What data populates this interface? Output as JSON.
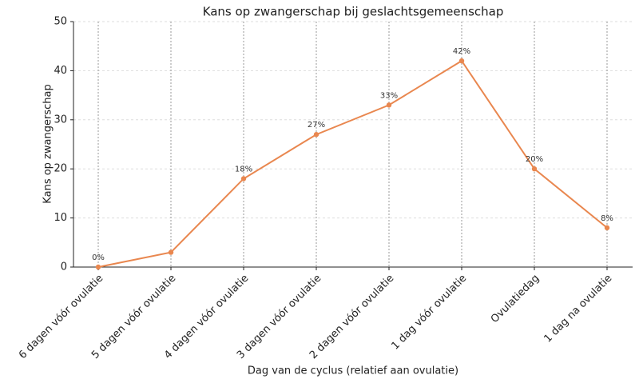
{
  "chart_data": {
    "type": "line",
    "title": "Kans op zwangerschap bij geslachtsgemeenschap",
    "x_label": "Dag van de cyclus (relatief aan ovulatie)",
    "y_label": "Kans op zwangerschap",
    "categories": [
      "6 dagen vóór ovulatie",
      "5 dagen vóór ovulatie",
      "4 dagen vóór ovulatie",
      "3 dagen vóór ovulatie",
      "2 dagen vóór ovulatie",
      "1 dag vóór ovulatie",
      "Ovulatiedag",
      "1 dag na ovulatie"
    ],
    "values": [
      0,
      3,
      18,
      27,
      33,
      42,
      20,
      8
    ],
    "value_labels": [
      "0%",
      null,
      "18%",
      "27%",
      "33%",
      "42%",
      "20%",
      "8%"
    ],
    "color": "#e9874f",
    "ylim": [
      0,
      50
    ],
    "yticks": [
      0,
      10,
      20,
      30,
      40,
      50
    ],
    "grid": true
  }
}
